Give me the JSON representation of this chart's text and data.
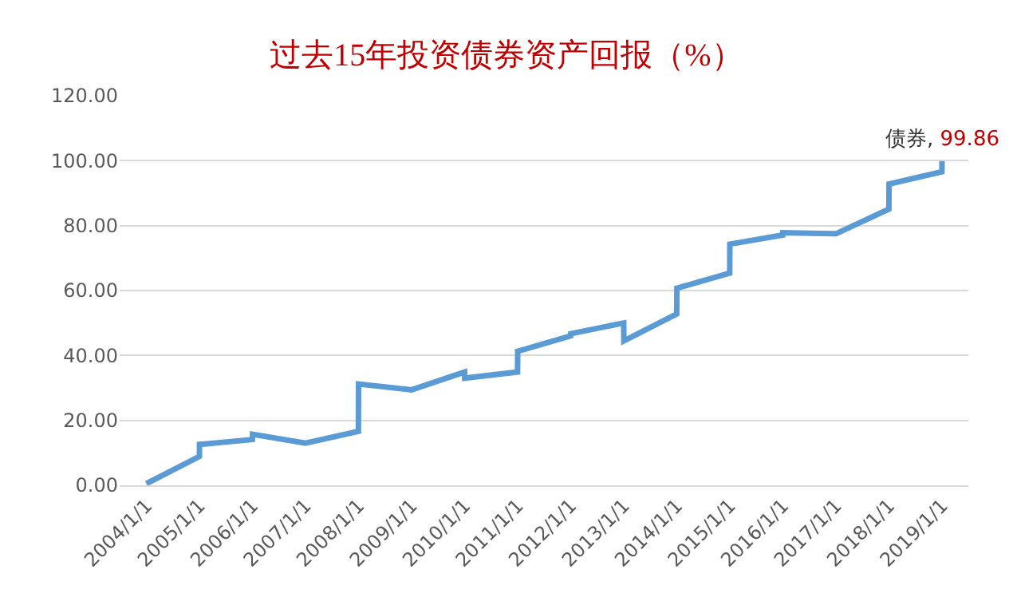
{
  "chart_data": {
    "type": "line",
    "title": "过去15年投资债券资产回报（%）",
    "x": [
      "2004-01-01",
      "2004-12-31",
      "2005-01-01",
      "2005-12-31",
      "2006-01-01",
      "2007-01-01",
      "2007-12-31",
      "2008-01-01",
      "2009-01-01",
      "2009-12-31",
      "2010-01-01",
      "2010-12-31",
      "2011-01-01",
      "2011-12-31",
      "2012-01-01",
      "2012-12-31",
      "2013-01-01",
      "2013-12-31",
      "2014-01-01",
      "2014-12-31",
      "2015-01-01",
      "2015-12-31",
      "2016-01-01",
      "2017-01-01",
      "2017-12-31",
      "2018-01-01",
      "2018-12-31",
      "2019-01-01"
    ],
    "series": [
      {
        "name": "债券,",
        "color": "#5b9bd5",
        "values": [
          0.5,
          8.9,
          12.6,
          14.1,
          15.7,
          13.0,
          16.6,
          31.2,
          29.4,
          34.9,
          33.0,
          34.9,
          41.3,
          46.0,
          46.7,
          50.0,
          44.5,
          52.8,
          60.7,
          65.4,
          74.3,
          77.1,
          77.8,
          77.5,
          85.1,
          92.8,
          96.6,
          99.86
        ],
        "value_labels": [
          null,
          null,
          null,
          null,
          null,
          null,
          null,
          null,
          null,
          null,
          null,
          null,
          null,
          null,
          null,
          null,
          null,
          null,
          null,
          null,
          null,
          null,
          null,
          null,
          null,
          null,
          null,
          "99.86"
        ]
      }
    ],
    "xlim": [
      "2003-07-01",
      "2019-07-01"
    ],
    "xticks": [
      {
        "value": "2004-01-01",
        "label": "2004/1/1"
      },
      {
        "value": "2005-01-01",
        "label": "2005/1/1"
      },
      {
        "value": "2006-01-01",
        "label": "2006/1/1"
      },
      {
        "value": "2007-01-01",
        "label": "2007/1/1"
      },
      {
        "value": "2008-01-01",
        "label": "2008/1/1"
      },
      {
        "value": "2009-01-01",
        "label": "2009/1/1"
      },
      {
        "value": "2010-01-01",
        "label": "2010/1/1"
      },
      {
        "value": "2011-01-01",
        "label": "2011/1/1"
      },
      {
        "value": "2012-01-01",
        "label": "2012/1/1"
      },
      {
        "value": "2013-01-01",
        "label": "2013/1/1"
      },
      {
        "value": "2014-01-01",
        "label": "2014/1/1"
      },
      {
        "value": "2015-01-01",
        "label": "2015/1/1"
      },
      {
        "value": "2016-01-01",
        "label": "2016/1/1"
      },
      {
        "value": "2017-01-01",
        "label": "2017/1/1"
      },
      {
        "value": "2018-01-01",
        "label": "2018/1/1"
      },
      {
        "value": "2019-01-01",
        "label": "2019/1/1"
      }
    ],
    "ylim": [
      0,
      120
    ],
    "yticks": [
      {
        "value": 0,
        "label": "0.00"
      },
      {
        "value": 20,
        "label": "20.00"
      },
      {
        "value": 40,
        "label": "40.00"
      },
      {
        "value": 60,
        "label": "60.00"
      },
      {
        "value": 80,
        "label": "80.00"
      },
      {
        "value": 100,
        "label": "100.00"
      },
      {
        "value": 120,
        "label": "120.00"
      }
    ],
    "grid": "y",
    "legend": false,
    "marker": "none",
    "line_style": "solid"
  }
}
